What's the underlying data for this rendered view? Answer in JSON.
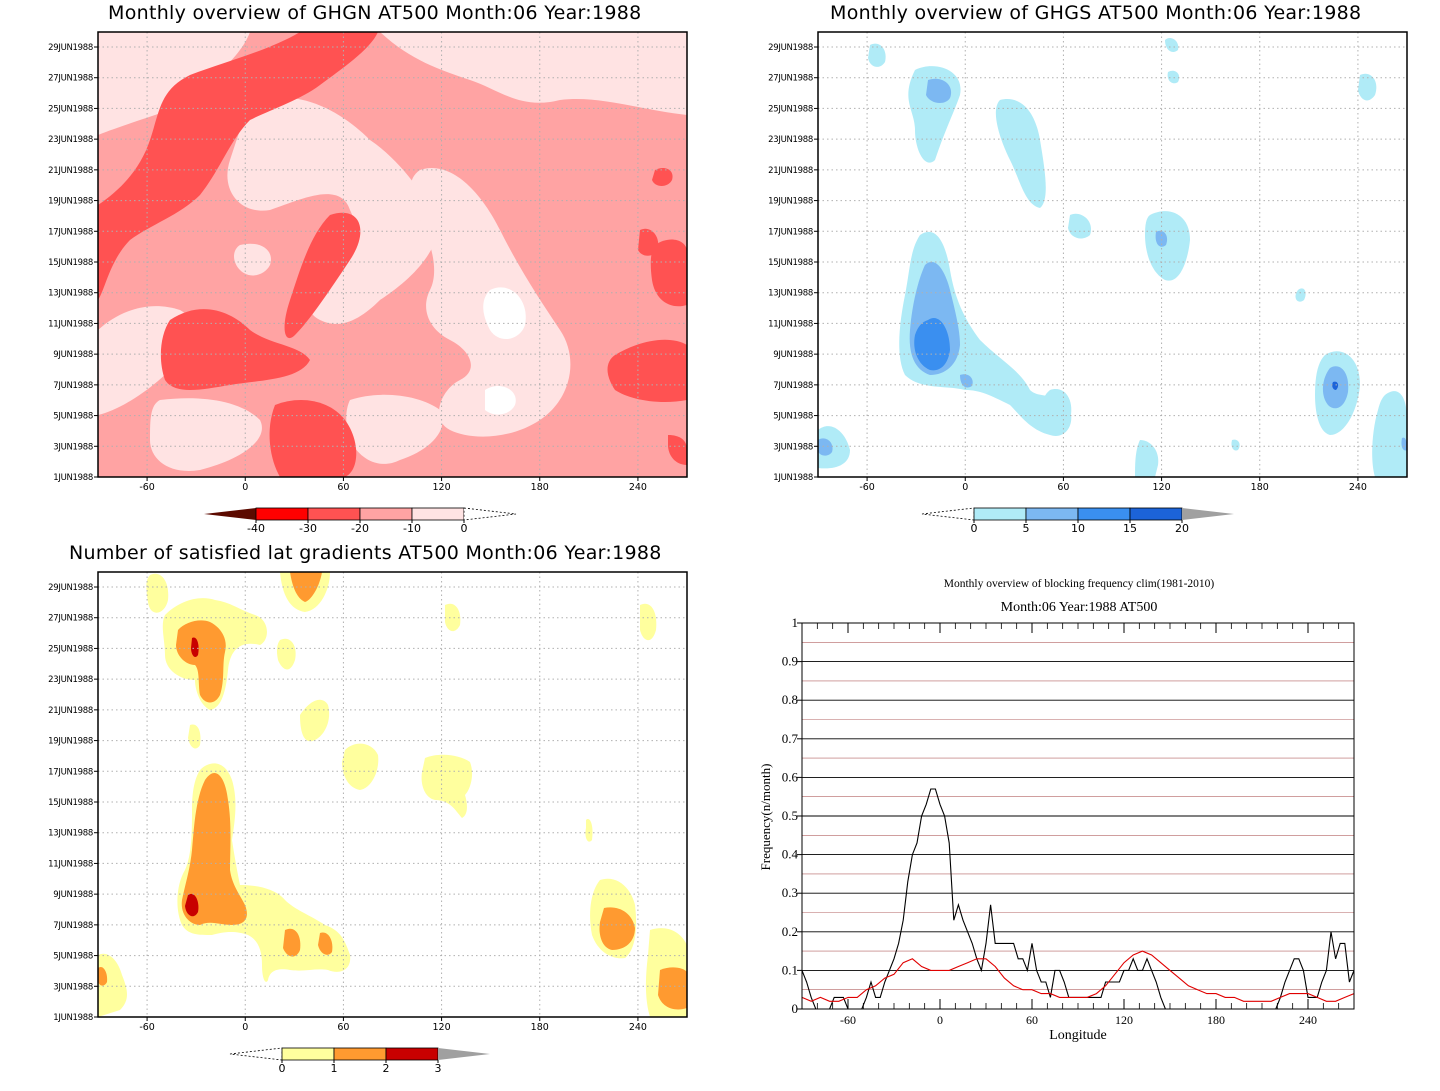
{
  "panels": {
    "ghgn": {
      "title": "Monthly overview of GHGN AT500 Month:06 Year:1988",
      "type": "contour",
      "y_ticks": [
        "29JUN1988",
        "27JUN1988",
        "25JUN1988",
        "23JUN1988",
        "21JUN1988",
        "19JUN1988",
        "17JUN1988",
        "15JUN1988",
        "13JUN1988",
        "11JUN1988",
        "9JUN1988",
        "7JUN1988",
        "5JUN1988",
        "3JUN1988",
        "1JUN1988"
      ],
      "x_ticks": [
        "-60",
        "0",
        "60",
        "120",
        "180",
        "240"
      ],
      "colorbar": {
        "labels": [
          "-40",
          "-30",
          "-20",
          "-10",
          "0"
        ],
        "colors": [
          "#5c0a00",
          "#ff0000",
          "#ff5252",
          "#ffa3a3",
          "#ffe3e3",
          "#ffffff"
        ]
      }
    },
    "ghgs": {
      "title": "Monthly overview of GHGS AT500 Month:06 Year:1988",
      "type": "contour",
      "y_ticks": [
        "29JUN1988",
        "27JUN1988",
        "25JUN1988",
        "23JUN1988",
        "21JUN1988",
        "19JUN1988",
        "17JUN1988",
        "15JUN1988",
        "13JUN1988",
        "11JUN1988",
        "9JUN1988",
        "7JUN1988",
        "5JUN1988",
        "3JUN1988",
        "1JUN1988"
      ],
      "x_ticks": [
        "-60",
        "0",
        "60",
        "120",
        "180",
        "240"
      ],
      "colorbar": {
        "labels": [
          "0",
          "5",
          "10",
          "15",
          "20"
        ],
        "colors": [
          "#ffffff",
          "#b0ebf7",
          "#7cb8f2",
          "#3a8ff0",
          "#1c63d9",
          "#a0a0a0"
        ]
      }
    },
    "latgrad": {
      "title": "Number of satisfied lat gradients AT500 Month:06 Year:1988",
      "type": "contour",
      "y_ticks": [
        "29JUN1988",
        "27JUN1988",
        "25JUN1988",
        "23JUN1988",
        "21JUN1988",
        "19JUN1988",
        "17JUN1988",
        "15JUN1988",
        "13JUN1988",
        "11JUN1988",
        "9JUN1988",
        "7JUN1988",
        "5JUN1988",
        "3JUN1988",
        "1JUN1988"
      ],
      "x_ticks": [
        "-60",
        "0",
        "60",
        "120",
        "180",
        "240"
      ],
      "colorbar": {
        "labels": [
          "0",
          "1",
          "2",
          "3"
        ],
        "colors": [
          "#ffffff",
          "#ffff9e",
          "#ff9a30",
          "#c80000",
          "#a0a0a0"
        ]
      }
    }
  },
  "chart_data": {
    "type": "line",
    "title": "Monthly overview of blocking frequency clim(1981-2010)",
    "subtitle": "Month:06 Year:1988  AT500",
    "xlabel": "Longitude",
    "ylabel": "Frequency(n/month)",
    "xlim": [
      -90,
      270
    ],
    "ylim": [
      0,
      1
    ],
    "x_ticks": [
      -60,
      0,
      60,
      120,
      180,
      240
    ],
    "y_ticks": [
      "0",
      "0.1",
      "0.2",
      "0.3",
      "0.4",
      "0.5",
      "0.6",
      "0.7",
      "0.8",
      "0.9",
      "1"
    ],
    "grid": true,
    "series": [
      {
        "color": "#000000",
        "x": [
          -90,
          -87,
          -84,
          -81,
          -78,
          -75,
          -72,
          -69,
          -66,
          -63,
          -60,
          -57,
          -54,
          -51,
          -48,
          -45,
          -42,
          -39,
          -36,
          -33,
          -30,
          -27,
          -24,
          -21,
          -18,
          -15,
          -12,
          -9,
          -6,
          -3,
          0,
          3,
          6,
          9,
          12,
          15,
          18,
          21,
          24,
          27,
          30,
          33,
          36,
          39,
          42,
          45,
          48,
          51,
          54,
          57,
          60,
          63,
          66,
          69,
          72,
          75,
          78,
          81,
          84,
          87,
          90,
          93,
          96,
          99,
          102,
          105,
          108,
          111,
          114,
          117,
          120,
          123,
          126,
          129,
          132,
          135,
          138,
          141,
          144,
          147,
          150,
          153,
          156,
          159,
          162,
          165,
          168,
          171,
          174,
          177,
          180,
          183,
          186,
          189,
          192,
          195,
          198,
          201,
          204,
          207,
          210,
          213,
          216,
          219,
          222,
          225,
          228,
          231,
          234,
          237,
          240,
          243,
          246,
          249,
          252,
          255,
          258,
          261,
          264,
          267,
          270
        ],
        "y": [
          0.1,
          0.07,
          0.03,
          0.0,
          0.0,
          0.0,
          0.0,
          0.03,
          0.03,
          0.03,
          0.0,
          0.0,
          0.0,
          0.0,
          0.03,
          0.07,
          0.03,
          0.03,
          0.07,
          0.1,
          0.13,
          0.17,
          0.23,
          0.33,
          0.4,
          0.43,
          0.5,
          0.53,
          0.57,
          0.57,
          0.53,
          0.5,
          0.43,
          0.23,
          0.27,
          0.23,
          0.2,
          0.17,
          0.13,
          0.1,
          0.17,
          0.27,
          0.17,
          0.17,
          0.17,
          0.17,
          0.17,
          0.13,
          0.13,
          0.1,
          0.17,
          0.1,
          0.07,
          0.07,
          0.03,
          0.1,
          0.1,
          0.07,
          0.03,
          0.03,
          0.03,
          0.03,
          0.03,
          0.03,
          0.03,
          0.03,
          0.07,
          0.07,
          0.07,
          0.07,
          0.1,
          0.1,
          0.13,
          0.1,
          0.1,
          0.13,
          0.1,
          0.07,
          0.03,
          0.0,
          0.0,
          0.0,
          0.0,
          0.0,
          0.0,
          0.0,
          0.0,
          0.0,
          0.0,
          0.0,
          0.0,
          0.0,
          0.0,
          0.0,
          0.0,
          0.0,
          0.0,
          0.0,
          0.0,
          0.0,
          0.0,
          0.0,
          0.0,
          0.0,
          0.03,
          0.07,
          0.1,
          0.13,
          0.13,
          0.1,
          0.03,
          0.03,
          0.03,
          0.07,
          0.1,
          0.2,
          0.13,
          0.17,
          0.17,
          0.07,
          0.1
        ]
      },
      {
        "color": "#e00000",
        "x": [
          -90,
          -84,
          -78,
          -72,
          -66,
          -60,
          -54,
          -48,
          -42,
          -36,
          -30,
          -24,
          -18,
          -12,
          -6,
          0,
          6,
          12,
          18,
          24,
          30,
          36,
          42,
          48,
          54,
          60,
          66,
          72,
          78,
          84,
          90,
          96,
          102,
          108,
          114,
          120,
          126,
          132,
          138,
          144,
          150,
          156,
          162,
          168,
          174,
          180,
          186,
          192,
          198,
          204,
          210,
          216,
          222,
          228,
          234,
          240,
          246,
          252,
          258,
          264,
          270
        ],
        "y": [
          0.03,
          0.02,
          0.03,
          0.02,
          0.02,
          0.03,
          0.03,
          0.05,
          0.06,
          0.08,
          0.09,
          0.12,
          0.13,
          0.11,
          0.1,
          0.1,
          0.1,
          0.11,
          0.12,
          0.13,
          0.13,
          0.11,
          0.08,
          0.06,
          0.05,
          0.05,
          0.04,
          0.04,
          0.03,
          0.03,
          0.03,
          0.03,
          0.04,
          0.06,
          0.09,
          0.12,
          0.14,
          0.15,
          0.14,
          0.12,
          0.1,
          0.08,
          0.06,
          0.05,
          0.04,
          0.04,
          0.03,
          0.03,
          0.02,
          0.02,
          0.02,
          0.02,
          0.03,
          0.04,
          0.04,
          0.04,
          0.03,
          0.02,
          0.02,
          0.03,
          0.04
        ]
      }
    ]
  }
}
